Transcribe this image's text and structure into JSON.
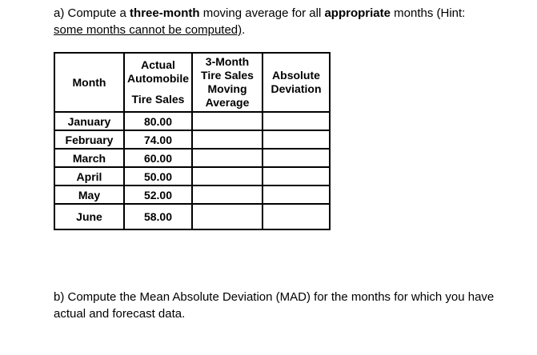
{
  "question_a": {
    "t1": "a) Compute a ",
    "b1": "three-month",
    "t2": " moving average for all ",
    "b2": "appropriate",
    "t3": " months (Hint:",
    "u1": "some months cannot be computed)",
    "t4": "."
  },
  "question_b": {
    "line1": "b) Compute the Mean Absolute Deviation (MAD) for the months for which you have",
    "line2": "actual and forecast data."
  },
  "table": {
    "columns": [
      {
        "lines": [
          "Month"
        ]
      },
      {
        "lines": [
          "Actual",
          "Automobile",
          "Tire Sales"
        ]
      },
      {
        "lines": [
          "3-Month",
          "Tire Sales",
          "Moving",
          "Average"
        ]
      },
      {
        "lines": [
          "Absolute",
          "Deviation"
        ]
      }
    ],
    "rows": [
      {
        "month": "January",
        "actual": "80.00",
        "moving_average": "",
        "absolute_deviation": ""
      },
      {
        "month": "February",
        "actual": "74.00",
        "moving_average": "",
        "absolute_deviation": ""
      },
      {
        "month": "March",
        "actual": "60.00",
        "moving_average": "",
        "absolute_deviation": ""
      },
      {
        "month": "April",
        "actual": "50.00",
        "moving_average": "",
        "absolute_deviation": ""
      },
      {
        "month": "May",
        "actual": "52.00",
        "moving_average": "",
        "absolute_deviation": ""
      },
      {
        "month": "June",
        "actual": "58.00",
        "moving_average": "",
        "absolute_deviation": ""
      }
    ]
  },
  "colors": {
    "text": "#000000",
    "background": "#ffffff",
    "table_border": "#000000"
  }
}
